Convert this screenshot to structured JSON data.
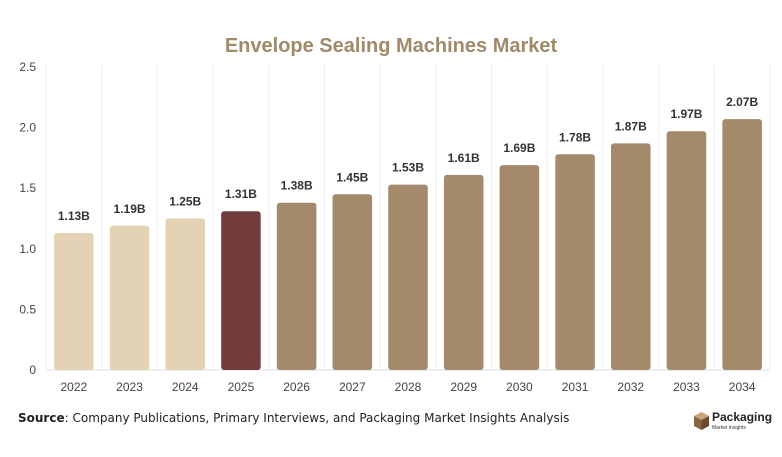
{
  "chart_data": {
    "type": "bar",
    "title": "Envelope Sealing Machines Market",
    "xlabel": "",
    "ylabel": "",
    "categories": [
      "2022",
      "2023",
      "2024",
      "2025",
      "2026",
      "2027",
      "2028",
      "2029",
      "2030",
      "2031",
      "2032",
      "2033",
      "2034"
    ],
    "values": [
      1.13,
      1.19,
      1.25,
      1.31,
      1.38,
      1.45,
      1.53,
      1.61,
      1.69,
      1.78,
      1.87,
      1.97,
      2.07
    ],
    "data_labels": [
      "1.13B",
      "1.19B",
      "1.25B",
      "1.31B",
      "1.38B",
      "1.45B",
      "1.53B",
      "1.61B",
      "1.69B",
      "1.78B",
      "1.87B",
      "1.97B",
      "2.07B"
    ],
    "ylim": [
      0,
      2.5
    ],
    "yticks": [
      0,
      0.5,
      1.0,
      1.5,
      2.0,
      2.5
    ],
    "ytick_labels": [
      "0",
      "0.5",
      "1.0",
      "1.5",
      "2.0",
      "2.5"
    ],
    "grid": "vertical separators",
    "legend": "none",
    "colors": {
      "historical": "#e3d2b4",
      "current": "#733d3d",
      "forecast": "#a38a6b",
      "title": "#a08a6a"
    },
    "bar_color_groups": [
      "historical",
      "historical",
      "historical",
      "current",
      "forecast",
      "forecast",
      "forecast",
      "forecast",
      "forecast",
      "forecast",
      "forecast",
      "forecast",
      "forecast"
    ]
  },
  "footer": {
    "source_label": "Source",
    "source_text": ": Company Publications, Primary Interviews, and Packaging Market Insights Analysis"
  },
  "logo": {
    "name": "Packaging",
    "tagline": "Market Insights"
  }
}
